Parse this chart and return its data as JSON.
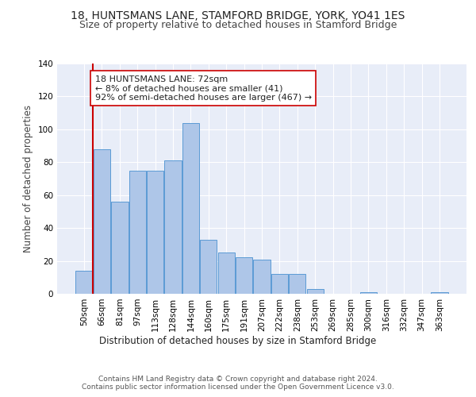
{
  "title1": "18, HUNTSMANS LANE, STAMFORD BRIDGE, YORK, YO41 1ES",
  "title2": "Size of property relative to detached houses in Stamford Bridge",
  "xlabel": "Distribution of detached houses by size in Stamford Bridge",
  "ylabel": "Number of detached properties",
  "categories": [
    "50sqm",
    "66sqm",
    "81sqm",
    "97sqm",
    "113sqm",
    "128sqm",
    "144sqm",
    "160sqm",
    "175sqm",
    "191sqm",
    "207sqm",
    "222sqm",
    "238sqm",
    "253sqm",
    "269sqm",
    "285sqm",
    "300sqm",
    "316sqm",
    "332sqm",
    "347sqm",
    "363sqm"
  ],
  "values": [
    14,
    88,
    56,
    75,
    75,
    81,
    104,
    33,
    25,
    22,
    21,
    12,
    12,
    3,
    0,
    0,
    1,
    0,
    0,
    0,
    1
  ],
  "bar_color": "#aec6e8",
  "bar_edge_color": "#5b9bd5",
  "bg_color": "#e8edf8",
  "grid_color": "#ffffff",
  "annotation_text": "18 HUNTSMANS LANE: 72sqm\n← 8% of detached houses are smaller (41)\n92% of semi-detached houses are larger (467) →",
  "annotation_box_color": "#ffffff",
  "annotation_box_edge": "#cc0000",
  "vline_x": 0.5,
  "vline_color": "#cc0000",
  "ylim": [
    0,
    140
  ],
  "yticks": [
    0,
    20,
    40,
    60,
    80,
    100,
    120,
    140
  ],
  "footer": "Contains HM Land Registry data © Crown copyright and database right 2024.\nContains public sector information licensed under the Open Government Licence v3.0.",
  "title1_fontsize": 10,
  "title2_fontsize": 9,
  "xlabel_fontsize": 8.5,
  "ylabel_fontsize": 8.5,
  "tick_fontsize": 7.5,
  "annotation_fontsize": 8,
  "footer_fontsize": 6.5
}
